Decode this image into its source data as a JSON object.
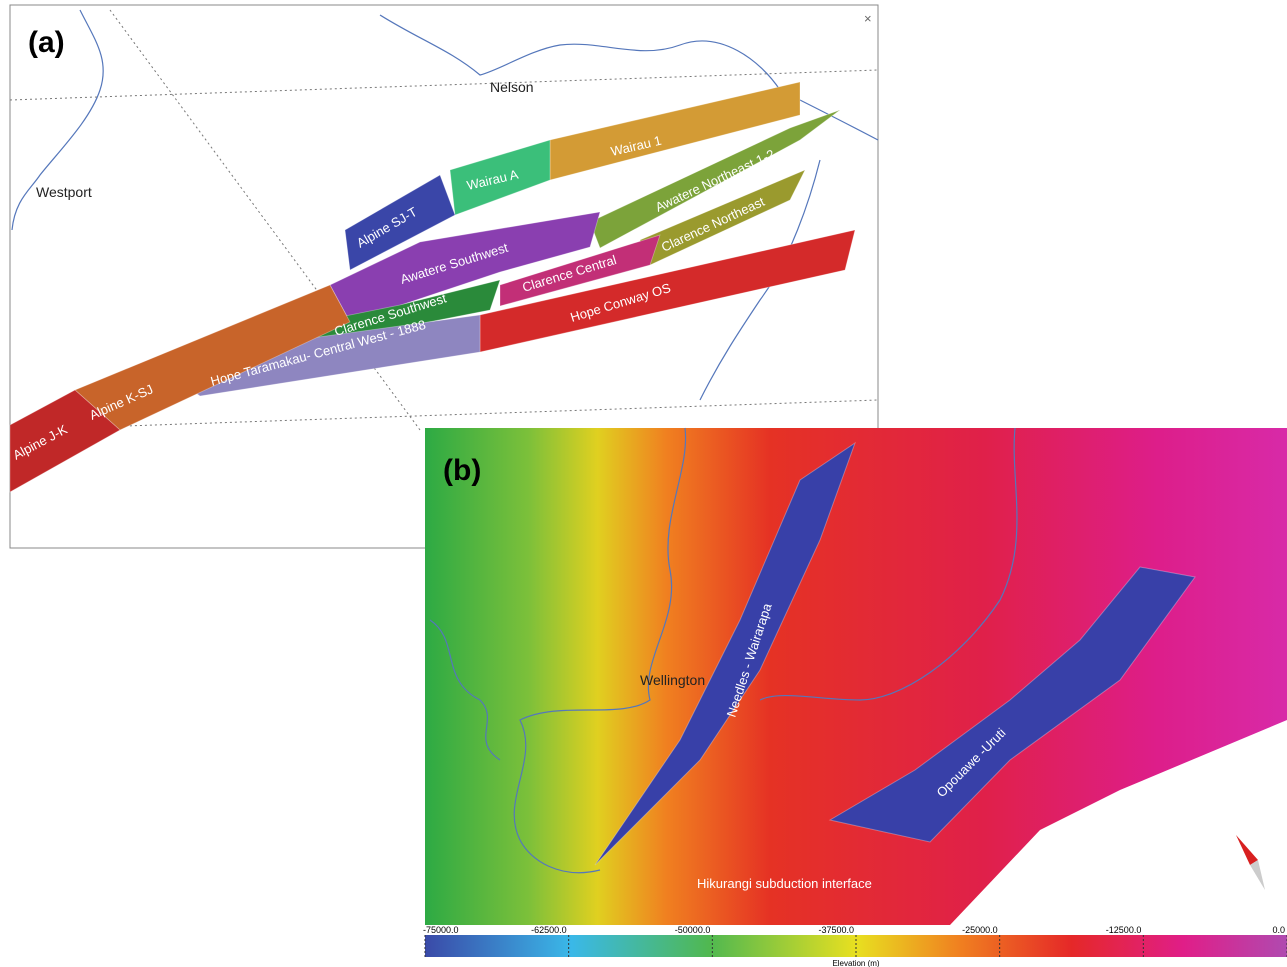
{
  "panel_a": {
    "label": "(a)",
    "places": [
      "Nelson",
      "Westport"
    ],
    "faults": [
      "Wairau 1",
      "Wairau A",
      "Alpine SJ-T",
      "Awatere Northeast 1-2",
      "Awatere Southwest",
      "Clarence Northeast",
      "Clarence Central",
      "Clarence Southwest",
      "Hope Conway OS",
      "Hope Taramakau- Central West - 1888",
      "Alpine K-SJ",
      "Alpine J-K"
    ]
  },
  "panel_b": {
    "label": "(b)",
    "places": [
      "Wellington"
    ],
    "faults": [
      "Needles - Wairarapa",
      "Opouawe -Uruti"
    ],
    "interface": "Hikurangi subduction interface"
  },
  "colorbar": {
    "title": "Elevation (m)",
    "lim": [
      -75000,
      0
    ],
    "ticks": [
      {
        "value": -75000,
        "label": "-75000.0"
      },
      {
        "value": -62500,
        "label": "-62500.0"
      },
      {
        "value": -50000,
        "label": "-50000.0"
      },
      {
        "value": -37500,
        "label": "-37500.0"
      },
      {
        "value": -25000,
        "label": "-25000.0"
      },
      {
        "value": -12500,
        "label": "-12500.0"
      },
      {
        "value": 0,
        "label": "0.0"
      }
    ]
  }
}
